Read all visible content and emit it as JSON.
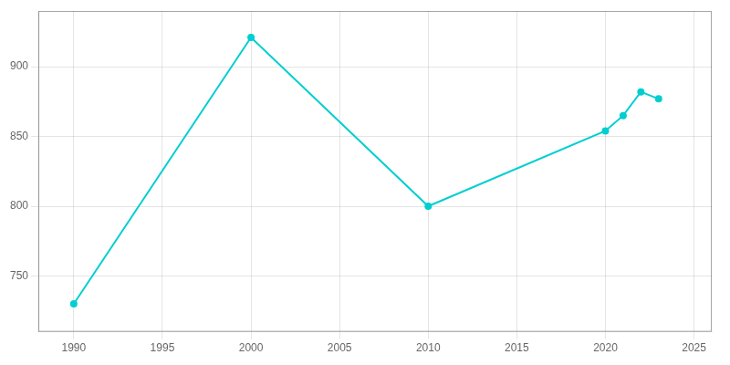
{
  "chart_data": {
    "type": "line",
    "x": [
      1990,
      2000,
      2010,
      2020,
      2021,
      2022,
      2023
    ],
    "values": [
      730,
      921,
      800,
      854,
      865,
      882,
      877
    ],
    "color": "#00CED1",
    "marker": "circle",
    "xlim": [
      1988,
      2026
    ],
    "ylim": [
      710,
      940
    ],
    "xticks": [
      1990,
      1995,
      2000,
      2005,
      2010,
      2015,
      2020,
      2025
    ],
    "yticks": [
      750,
      800,
      850,
      900
    ],
    "grid": true
  }
}
